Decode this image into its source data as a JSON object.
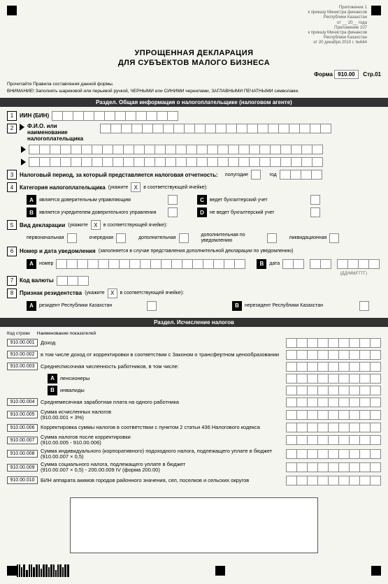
{
  "header": {
    "title": "УПРОЩЕННАЯ ДЕКЛАРАЦИЯ",
    "subtitle": "ДЛЯ СУБЪЕКТОВ МАЛОГО БИЗНЕСА",
    "approval_text": "Приложение 1\nк приказу Министра финансов\nРеспублики Казахстан\nот __ 20__ года\nПриложение 107\nк приказу Министра финансов\nРеспублики Казахстан\nот 20 декабря 2010 г. №644",
    "form_label": "Форма",
    "form_code": "910.00",
    "page_label": "Стр.01",
    "instructions": "Прочитайте Правила составления данной формы.",
    "warning": "ВНИМАНИЕ! Заполнять шариковой или перьевой ручкой, ЧЕРНЫМИ или СИНИМИ чернилами, ЗАГЛАВНЫМИ ПЕЧАТНЫМИ символами."
  },
  "section1": {
    "title": "Раздел. Общая информация о налогоплательщике (налоговом агенте)",
    "items": {
      "1": {
        "label": "ИИН (БИН)",
        "cell_count": 12
      },
      "2": {
        "label": "Ф.И.О. или наименование налогоплательщика",
        "cell_rows": 3,
        "cells_per_row": 28
      },
      "3": {
        "label": "Налоговый период, за который представляется налоговая отчетность:",
        "halfyear": "полугодие",
        "year": "год",
        "year_cells": 4
      },
      "4": {
        "label": "Категория налогоплательщика",
        "hint": "(укажите",
        "hint2": "в соответствующей ячейке):",
        "A": "является доверительным управляющим",
        "B": "является учредителем доверительного управления",
        "C": "ведет бухгалтерский учет",
        "D": "не ведет бухгалтерский учет"
      },
      "5": {
        "label": "Вид декларации",
        "hint": "(укажите",
        "hint2": "в соответствующей ячейке):",
        "opts": [
          "первоначальная",
          "очередная",
          "дополнительная",
          "дополнительная по уведомлению",
          "ликвидационная"
        ]
      },
      "6": {
        "label": "Номер и дата уведомления",
        "hint": "(заполняется в случае представления дополнительной декларации по уведомлению)",
        "A": "номер",
        "A_cells": 18,
        "B": "дата",
        "date_groups": [
          2,
          2,
          4
        ],
        "date_format": "(ДД/ММ/ГГГГ)"
      },
      "7": {
        "label": "Код валюты",
        "cell_count": 3
      },
      "8": {
        "label": "Признак резидентства",
        "hint": "(укажите",
        "hint2": "в соответствующей ячейке):",
        "A": "резидент Республики Казахстан",
        "B": "нерезидент Республики Казахстан"
      }
    }
  },
  "section2": {
    "title": "Раздел. Исчисление налогов",
    "col_headers": {
      "code": "Код строки",
      "name": "Наименование показателей"
    },
    "cell_count": 9,
    "rows": [
      {
        "code": "910.00.001",
        "label": "Доход"
      },
      {
        "code": "910.00.002",
        "label": "в том числе доход от корректировки в соответствии с Законом о трансфертном ценообразовании"
      },
      {
        "code": "910.00.003",
        "label": "Среднесписочная численность работников, в том числе:"
      },
      {
        "letter": "A",
        "label": "пенсионеры",
        "no_code": true
      },
      {
        "letter": "B",
        "label": "инвалиды",
        "no_code": true
      },
      {
        "code": "910.00.004",
        "label": "Среднемесячная заработная плата на одного работника"
      },
      {
        "code": "910.00.005",
        "label": "Сумма исчисленных налогов\n(910.00.001 × 3%)"
      },
      {
        "code": "910.00.006",
        "label": "Корректировка суммы налогов в соответствии с пунктом 2 статьи 436 Налогового кодекса"
      },
      {
        "code": "910.00.007",
        "label": "Сумма налогов после корректировки\n(910.00.005 - 910.00.006)"
      },
      {
        "code": "910.00.008",
        "label": "Сумма индивидуального (корпоративного) подоходного налога, подлежащего уплате в бюджет (910.00.007 × 0,5)"
      },
      {
        "code": "910.00.009",
        "label": "Сумма социального налога, подлежащего уплате в бюджет\n(910.00.007 × 0,5) - 200.00.009 IV (форма 200.00)"
      },
      {
        "code": "910.00.010",
        "label": "БИН аппарата акимов городов районного значения, сел, поселков и сельских округов"
      }
    ]
  },
  "colors": {
    "page_bg": "#f5f5f0",
    "section_bar_bg": "#333333",
    "section_bar_fg": "#ffffff",
    "cell_border": "#888888",
    "letter_box_bg": "#000000"
  }
}
